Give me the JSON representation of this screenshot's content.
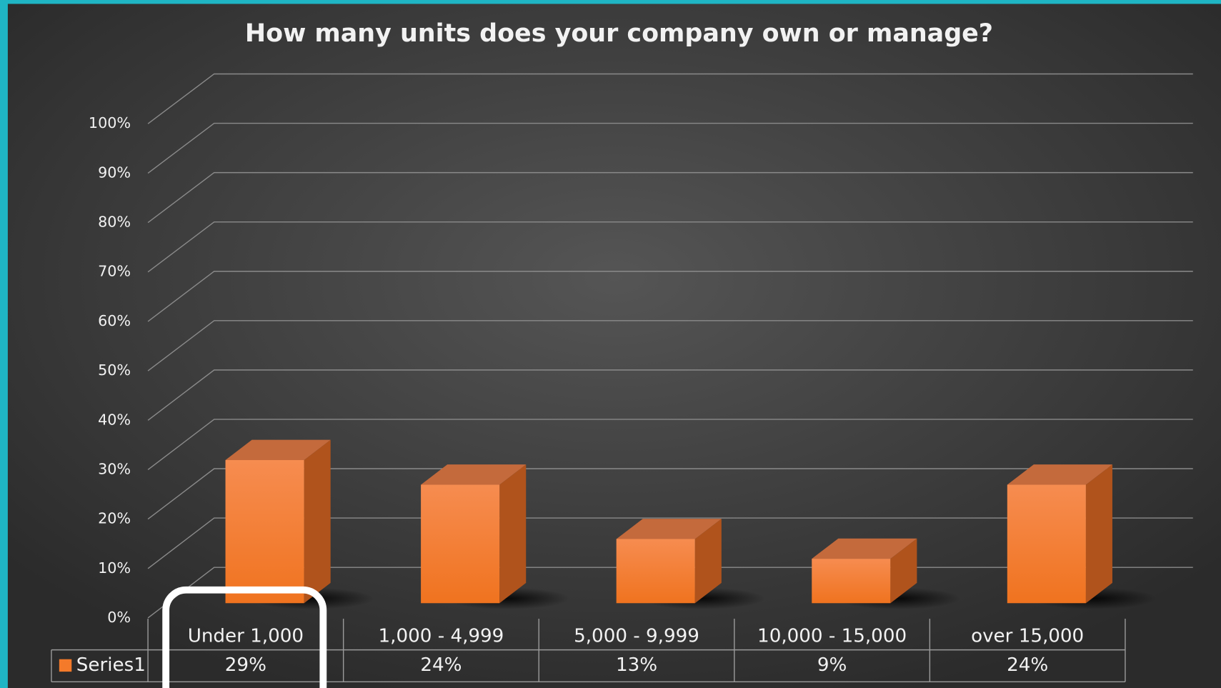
{
  "chart_data": {
    "type": "bar3d",
    "title": "How many units does your company own or manage?",
    "categories": [
      "Under 1,000",
      "1,000 - 4,999",
      "5,000 - 9,999",
      "10,000 - 15,000",
      "over 15,000"
    ],
    "series": [
      {
        "name": "Series1",
        "color": "#f47a2a",
        "values": [
          29,
          24,
          13,
          9,
          24
        ],
        "value_labels": [
          "29%",
          "24%",
          "13%",
          "9%",
          "24%"
        ]
      }
    ],
    "ylim": [
      0,
      100
    ],
    "yticks": [
      {
        "value": 0,
        "label": "0%"
      },
      {
        "value": 10,
        "label": "10%"
      },
      {
        "value": 20,
        "label": "20%"
      },
      {
        "value": 30,
        "label": "30%"
      },
      {
        "value": 40,
        "label": "40%"
      },
      {
        "value": 50,
        "label": "50%"
      },
      {
        "value": 60,
        "label": "60%"
      },
      {
        "value": 70,
        "label": "70%"
      },
      {
        "value": 80,
        "label": "80%"
      },
      {
        "value": 90,
        "label": "90%"
      },
      {
        "value": 100,
        "label": "100%"
      }
    ],
    "grid": true,
    "data_table": true
  }
}
